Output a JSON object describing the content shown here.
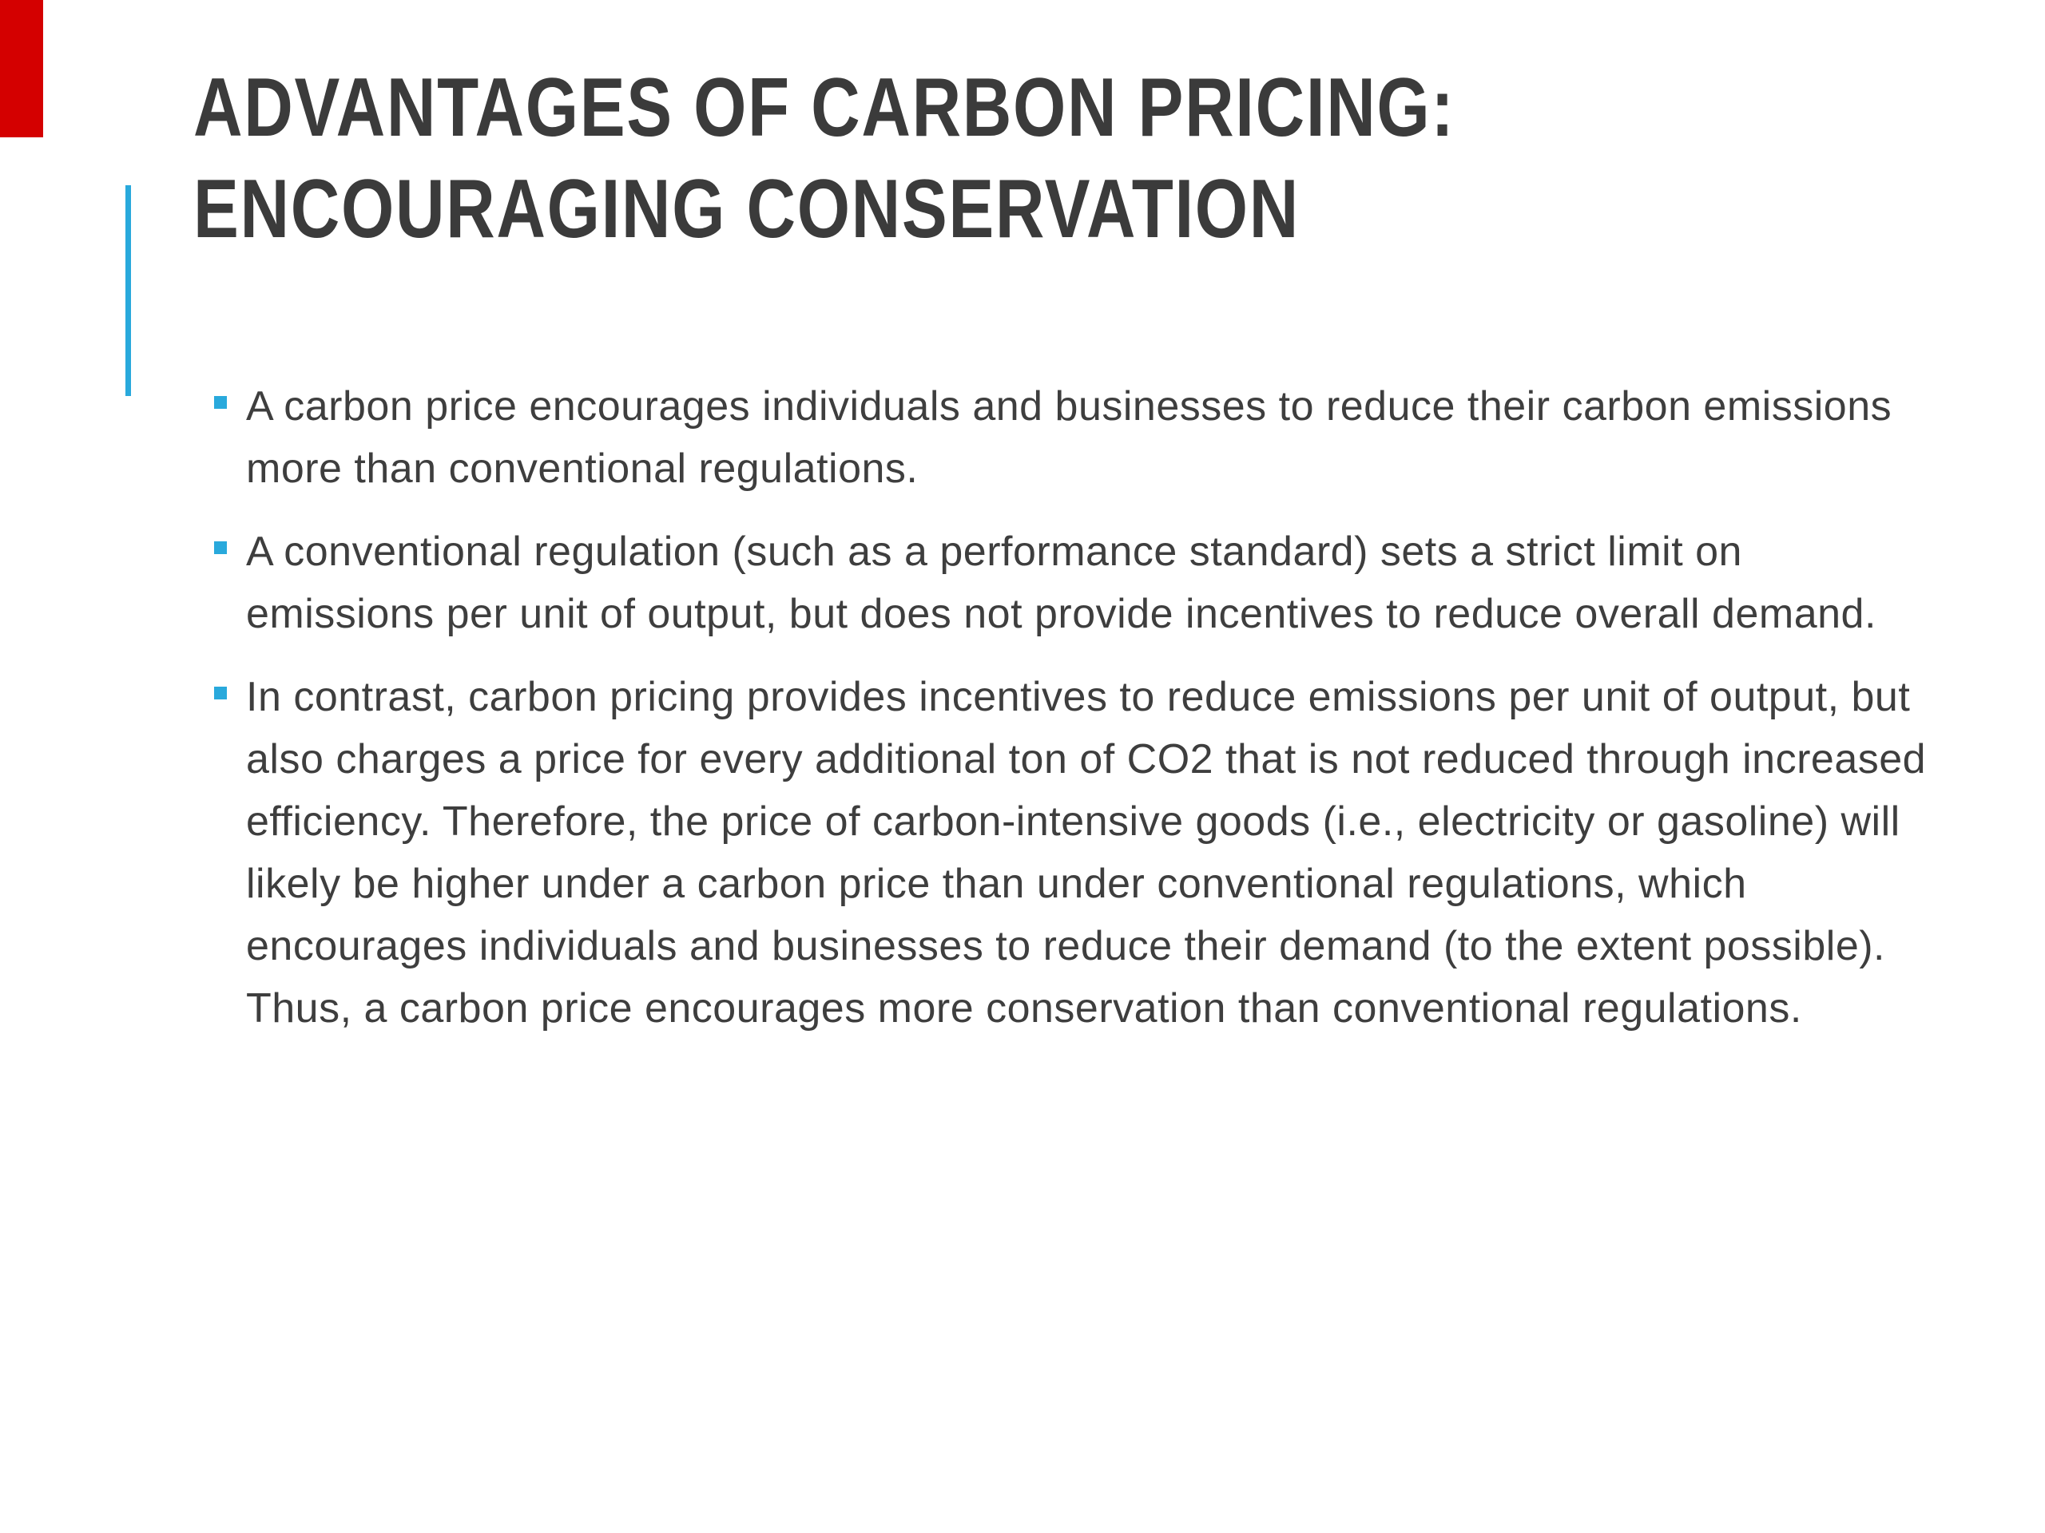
{
  "slide": {
    "title": {
      "line1": "ADVANTAGES OF CARBON PRICING:",
      "line2": "ENCOURAGING CONSERVATION"
    },
    "bullets": [
      "A carbon price encourages individuals and businesses to reduce their carbon emissions more than conventional regulations.",
      "A conventional regulation (such as a performance standard) sets a strict limit on emissions per unit of output, but does not provide incentives to reduce overall demand.",
      "In contrast, carbon pricing provides incentives to reduce emissions per unit of output, but also charges a price for every additional ton of CO2 that is not reduced through increased efficiency. Therefore, the price of carbon-intensive goods (i.e., electricity or gasoline) will likely be higher under a carbon price than under conventional regulations, which encourages individuals and businesses to reduce their demand (to the extent possible). Thus, a carbon price encourages more conservation than conventional regulations."
    ],
    "colors": {
      "accent_cyan": "#29a9dc",
      "accent_red": "#d40000",
      "title_color": "#3b3b3b",
      "text_color": "#3e3e3e"
    }
  }
}
